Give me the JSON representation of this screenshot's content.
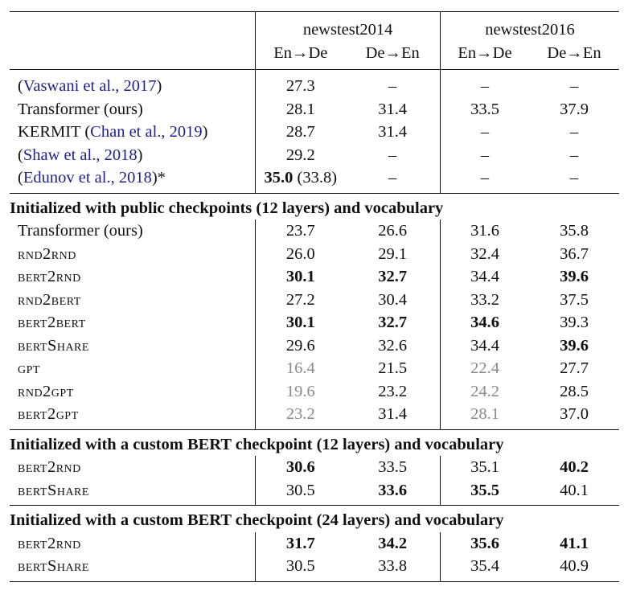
{
  "header": {
    "group1": "newstest2014",
    "group2": "newstest2016",
    "sub": [
      "En→De",
      "De→En",
      "En→De",
      "De→En"
    ]
  },
  "top_rows": [
    {
      "pre": "(",
      "cite": "Vaswani et al., 2017",
      "post": ")",
      "v": [
        "27.3",
        "–",
        "–",
        "–"
      ]
    },
    {
      "pre": "Transformer (ours)",
      "cite": "",
      "post": "",
      "v": [
        "28.1",
        "31.4",
        "33.5",
        "37.9"
      ]
    },
    {
      "pre": "KERMIT (",
      "cite": "Chan et al., 2019",
      "post": ")",
      "v": [
        "28.7",
        "31.4",
        "–",
        "–"
      ]
    },
    {
      "pre": "(",
      "cite": "Shaw et al., 2018",
      "post": ")",
      "v": [
        "29.2",
        "–",
        "–",
        "–"
      ]
    },
    {
      "pre": "(",
      "cite": "Edunov et al., 2018",
      "post": ")*",
      "v": [
        "35.0",
        "–",
        "–",
        "–"
      ],
      "v0_extra": " (33.8)"
    }
  ],
  "section1": {
    "title": "Initialized with public checkpoints (12 layers) and vocabulary",
    "rows": [
      {
        "name": "Transformer (ours)",
        "sc": false,
        "v": [
          "23.7",
          "26.6",
          "31.6",
          "35.8"
        ],
        "bold": [
          false,
          false,
          false,
          false
        ],
        "gray": [
          false,
          false,
          false,
          false
        ]
      },
      {
        "name": "rnd2rnd",
        "sc": true,
        "v": [
          "26.0",
          "29.1",
          "32.4",
          "36.7"
        ],
        "bold": [
          false,
          false,
          false,
          false
        ],
        "gray": [
          false,
          false,
          false,
          false
        ]
      },
      {
        "name": "bert2rnd",
        "sc": true,
        "v": [
          "30.1",
          "32.7",
          "34.4",
          "39.6"
        ],
        "bold": [
          true,
          true,
          false,
          true
        ],
        "gray": [
          false,
          false,
          false,
          false
        ]
      },
      {
        "name": "rnd2bert",
        "sc": true,
        "v": [
          "27.2",
          "30.4",
          "33.2",
          "37.5"
        ],
        "bold": [
          false,
          false,
          false,
          false
        ],
        "gray": [
          false,
          false,
          false,
          false
        ]
      },
      {
        "name": "bert2bert",
        "sc": true,
        "v": [
          "30.1",
          "32.7",
          "34.6",
          "39.3"
        ],
        "bold": [
          true,
          true,
          true,
          false
        ],
        "gray": [
          false,
          false,
          false,
          false
        ]
      },
      {
        "name": "bertShare",
        "sc": true,
        "v": [
          "29.6",
          "32.6",
          "34.4",
          "39.6"
        ],
        "bold": [
          false,
          false,
          false,
          true
        ],
        "gray": [
          false,
          false,
          false,
          false
        ]
      },
      {
        "name": "gpt",
        "sc": true,
        "v": [
          "16.4",
          "21.5",
          "22.4",
          "27.7"
        ],
        "bold": [
          false,
          false,
          false,
          false
        ],
        "gray": [
          true,
          false,
          true,
          false
        ]
      },
      {
        "name": "rnd2gpt",
        "sc": true,
        "v": [
          "19.6",
          "23.2",
          "24.2",
          "28.5"
        ],
        "bold": [
          false,
          false,
          false,
          false
        ],
        "gray": [
          true,
          false,
          true,
          false
        ]
      },
      {
        "name": "bert2gpt",
        "sc": true,
        "v": [
          "23.2",
          "31.4",
          "28.1",
          "37.0"
        ],
        "bold": [
          false,
          false,
          false,
          false
        ],
        "gray": [
          true,
          false,
          true,
          false
        ]
      }
    ]
  },
  "section2": {
    "title": "Initialized with a custom BERT checkpoint (12 layers) and vocabulary",
    "rows": [
      {
        "name": "bert2rnd",
        "sc": true,
        "v": [
          "30.6",
          "33.5",
          "35.1",
          "40.2"
        ],
        "bold": [
          true,
          false,
          false,
          true
        ],
        "gray": [
          false,
          false,
          false,
          false
        ]
      },
      {
        "name": "bertShare",
        "sc": true,
        "v": [
          "30.5",
          "33.6",
          "35.5",
          "40.1"
        ],
        "bold": [
          false,
          true,
          true,
          false
        ],
        "gray": [
          false,
          false,
          false,
          false
        ]
      }
    ]
  },
  "section3": {
    "title": "Initialized with a custom BERT checkpoint (24 layers) and vocabulary",
    "rows": [
      {
        "name": "bert2rnd",
        "sc": true,
        "v": [
          "31.7",
          "34.2",
          "35.6",
          "41.1"
        ],
        "bold": [
          true,
          true,
          true,
          true
        ],
        "gray": [
          false,
          false,
          false,
          false
        ]
      },
      {
        "name": "bertShare",
        "sc": true,
        "v": [
          "30.5",
          "33.8",
          "35.4",
          "40.9"
        ],
        "bold": [
          false,
          false,
          false,
          false
        ],
        "gray": [
          false,
          false,
          false,
          false
        ]
      }
    ]
  }
}
